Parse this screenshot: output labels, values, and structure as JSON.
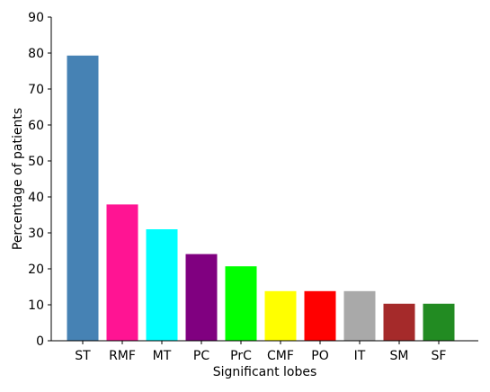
{
  "chart_data": {
    "type": "bar",
    "title": "",
    "xlabel": "Significant lobes",
    "ylabel": "Percentage of patients",
    "categories": [
      "ST",
      "RMF",
      "MT",
      "PC",
      "PrC",
      "CMF",
      "PO",
      "IT",
      "SM",
      "SF"
    ],
    "values": [
      79.3,
      37.9,
      31.0,
      24.1,
      20.7,
      13.8,
      13.8,
      13.8,
      10.3,
      10.3
    ],
    "colors": [
      "#4682B4",
      "#FF1493",
      "#00FFFF",
      "#800080",
      "#00FF00",
      "#FFFF00",
      "#FF0000",
      "#A9A9A9",
      "#A52A2A",
      "#228B22"
    ],
    "ylim": [
      0,
      90
    ],
    "yticks": [
      0,
      10,
      20,
      30,
      40,
      50,
      60,
      70,
      80,
      90
    ],
    "grid": false,
    "legend": "none"
  }
}
